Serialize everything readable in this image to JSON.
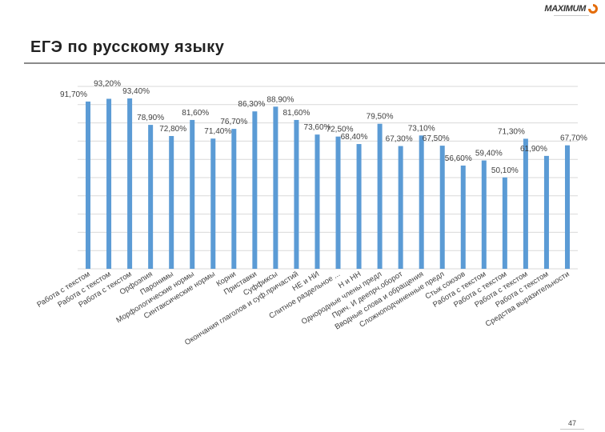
{
  "page": {
    "title": "ЕГЭ по русскому языку",
    "number": "47",
    "logo_text": "MAXIMUM"
  },
  "colors": {
    "bar": "#5b9bd5",
    "grid": "#d9d9d9",
    "text": "#404040",
    "brand": "#e46c0a"
  },
  "chart_data": {
    "type": "bar",
    "title": "",
    "xlabel": "",
    "ylabel": "",
    "ylim": [
      0,
      100
    ],
    "grid": true,
    "categories": [
      "Работа с текстом",
      "Работа с текстом",
      "Работа с текстом",
      "Орфоэпия",
      "Паронимы",
      "Морфологические нормы",
      "Синтаксические нормы",
      "Корни",
      "Приставки",
      "Суффиксы",
      "Окончания глаголов и суф.причастий",
      "НЕ и НИ",
      "Слитное раздельное ...",
      "Н и НН",
      "Однородные члены предл",
      "Прич. И деепрч.оборот",
      "Вводные слова и обращения",
      "Сложноподчиненные предл",
      "Стык союзов",
      "Работа с текстом",
      "Работа с текстом",
      "Работа с текстом",
      "Работа с текстом",
      "Средства выразительности"
    ],
    "values": [
      91.7,
      93.2,
      93.4,
      78.9,
      72.8,
      81.6,
      71.4,
      76.7,
      86.3,
      88.9,
      81.6,
      73.6,
      72.5,
      68.4,
      79.5,
      67.3,
      73.1,
      67.5,
      56.6,
      59.4,
      50.1,
      71.3,
      61.9,
      67.7
    ],
    "value_labels": [
      "91,70%",
      "93,20%",
      "93,40%",
      "78,90%",
      "72,80%",
      "81,60%",
      "71,40%",
      "76,70%",
      "86,30%",
      "88,90%",
      "81,60%",
      "73,60%",
      "72,50%",
      "68,40%",
      "79,50%",
      "67,30%",
      "73,10%",
      "67,50%",
      "56,60%",
      "59,40%",
      "50,10%",
      "71,30%",
      "61,90%",
      "67,70%"
    ]
  }
}
